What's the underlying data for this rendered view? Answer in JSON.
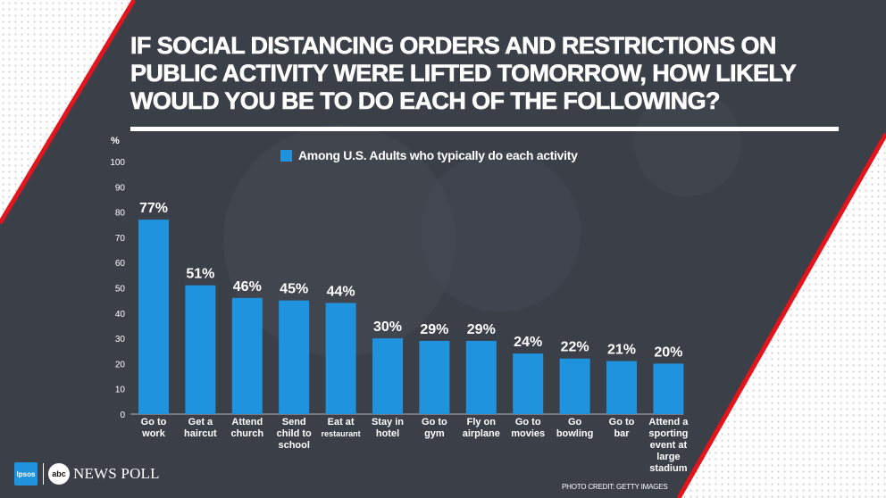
{
  "title": "IF SOCIAL DISTANCING ORDERS AND RESTRICTIONS ON PUBLIC ACTIVITY WERE LIFTED TOMORROW, HOW LIKELY WOULD YOU BE TO DO EACH OF THE FOLLOWING?",
  "legend_label": "Among U.S. Adults who typically do each activity",
  "brand": {
    "ipsos": "Ipsos",
    "abc": "abc",
    "poll": "NEWS POLL"
  },
  "photo_credit": "PHOTO CREDIT: GETTY IMAGES",
  "colors": {
    "bar": "#1f93dd",
    "accent_red": "#e3141b",
    "text": "#ffffff",
    "background": "#3a3f48"
  },
  "chart_data": {
    "type": "bar",
    "ylabel": "%",
    "ylim": [
      0,
      100
    ],
    "yticks": [
      0,
      10,
      20,
      30,
      40,
      50,
      60,
      70,
      80,
      90,
      100
    ],
    "grid": false,
    "legend_position": "top",
    "categories": [
      [
        "Go to",
        "work"
      ],
      [
        "Get a",
        "haircut"
      ],
      [
        "Attend",
        "church"
      ],
      [
        "Send",
        "child to",
        "school"
      ],
      [
        "Eat at",
        "restaurant"
      ],
      [
        "Stay in",
        "hotel"
      ],
      [
        "Go to",
        "gym"
      ],
      [
        "Fly on",
        "airplane"
      ],
      [
        "Go to",
        "movies"
      ],
      [
        "Go",
        "bowling"
      ],
      [
        "Go to",
        "bar"
      ],
      [
        "Attend a",
        "sporting",
        "event at",
        "large",
        "stadium"
      ]
    ],
    "series": [
      {
        "name": "Among U.S. Adults who typically do each activity",
        "values": [
          77,
          51,
          46,
          45,
          44,
          30,
          29,
          29,
          24,
          22,
          21,
          20
        ]
      }
    ],
    "data_labels": [
      "77%",
      "51%",
      "46%",
      "45%",
      "44%",
      "30%",
      "29%",
      "29%",
      "24%",
      "22%",
      "21%",
      "20%"
    ]
  }
}
